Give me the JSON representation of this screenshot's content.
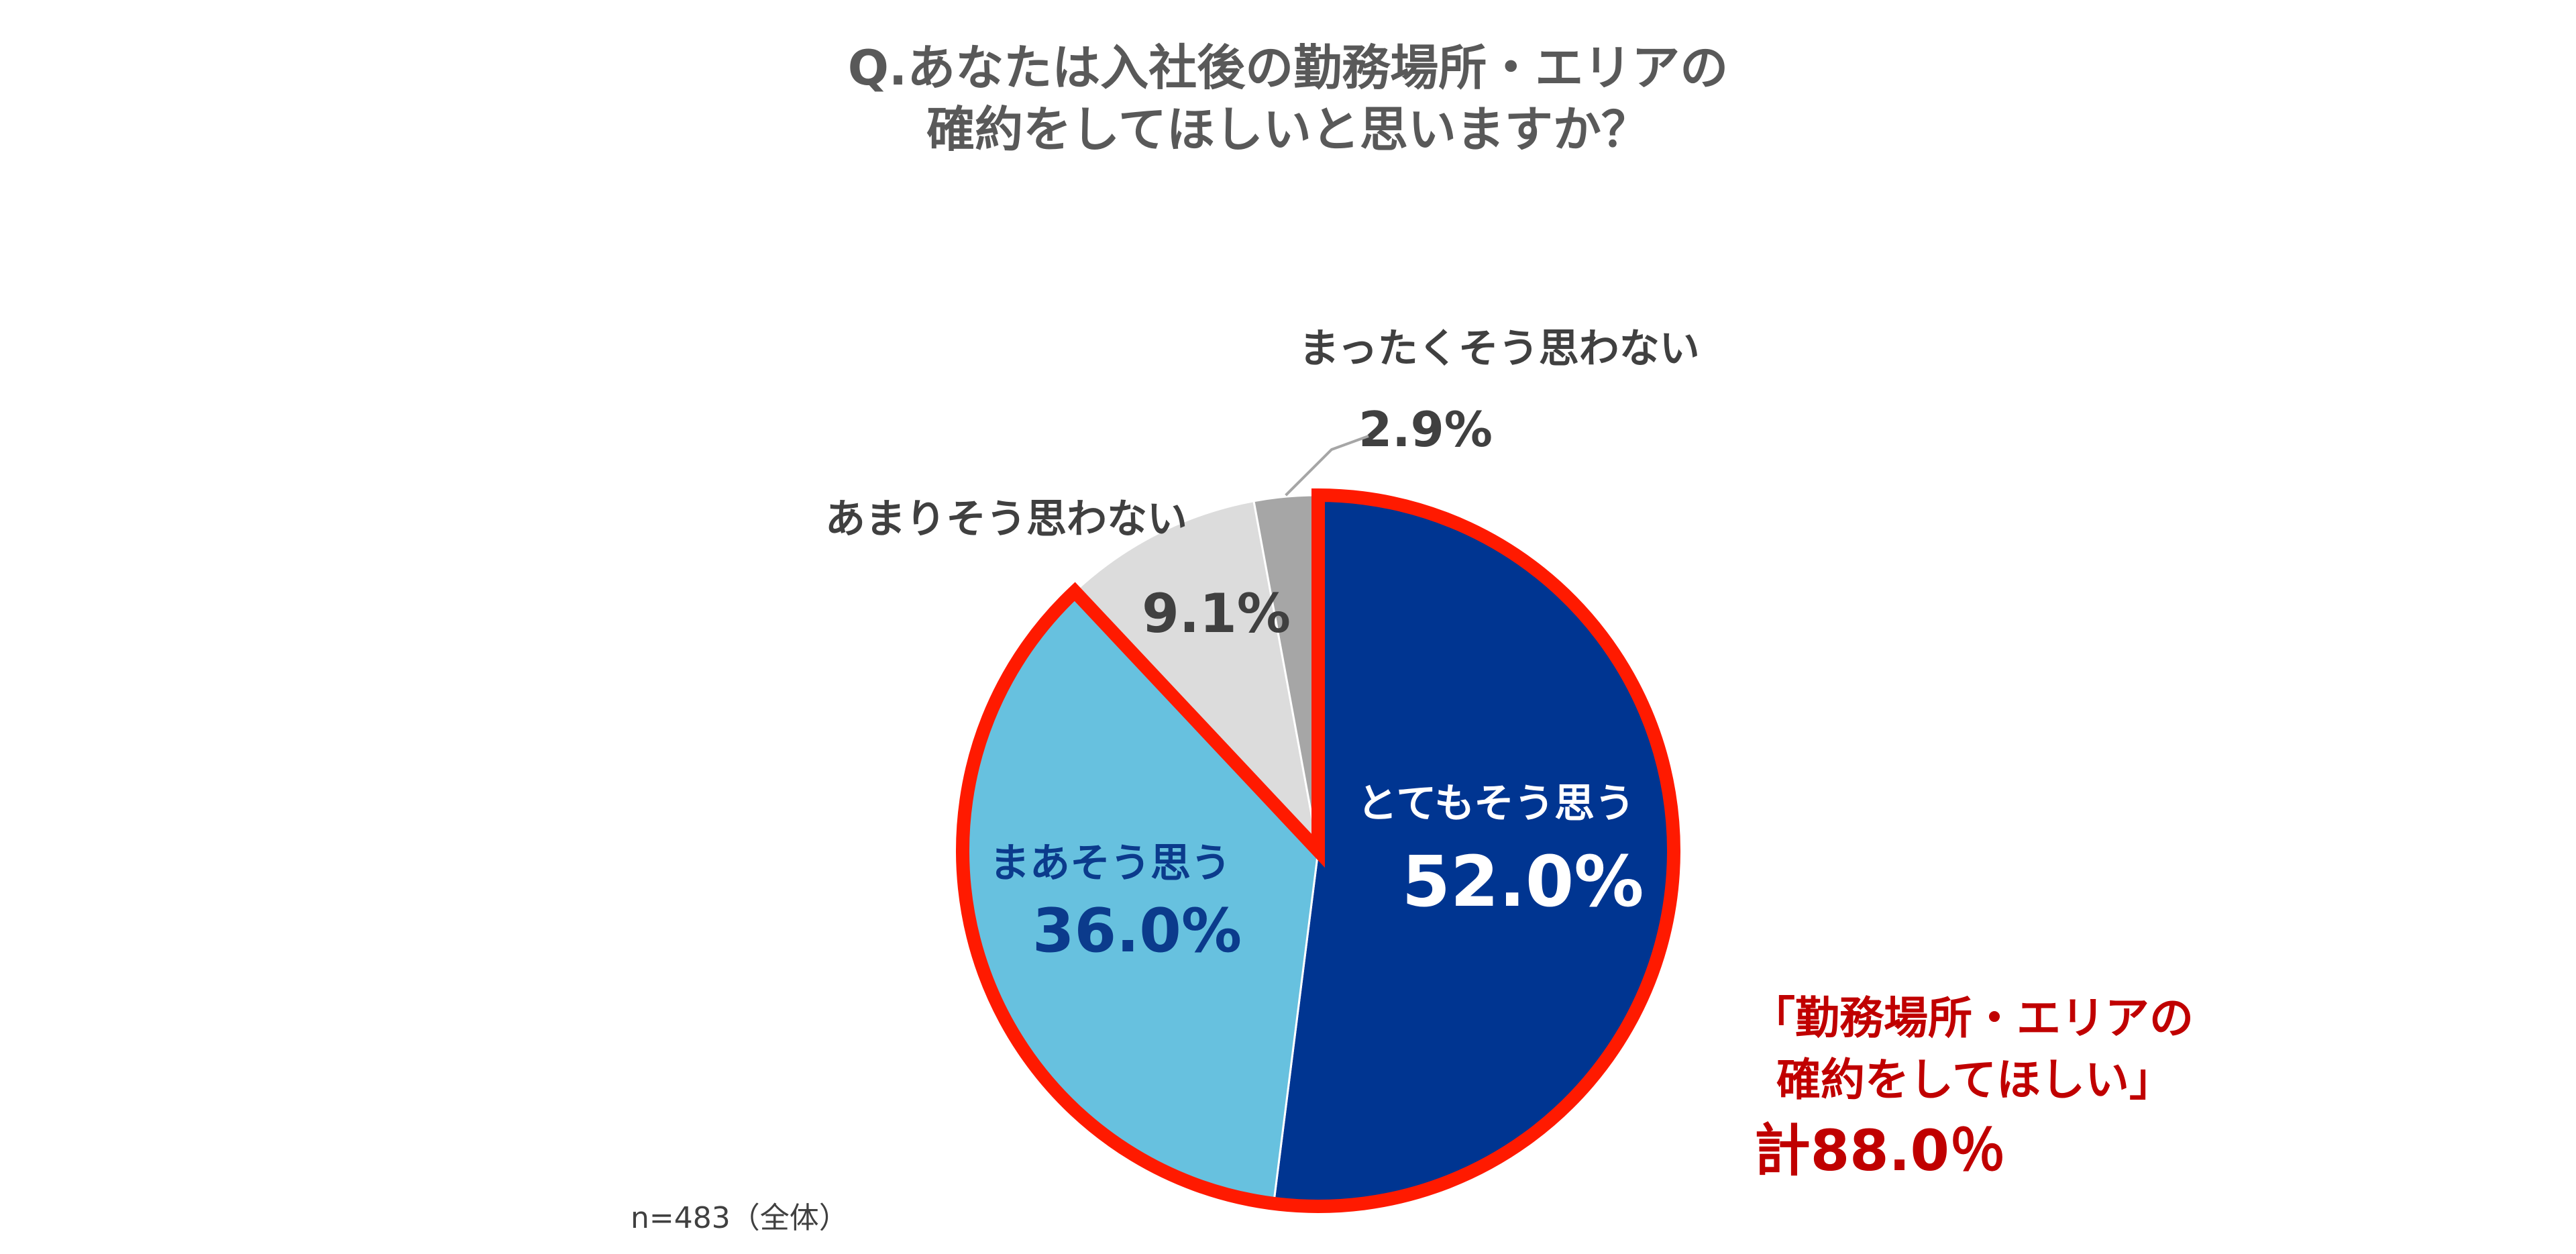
{
  "chart_data": {
    "type": "pie",
    "title": [
      "Q.あなたは入社後の勤務場所・エリアの",
      "確約をしてほしいと思いますか？"
    ],
    "categories": [
      "とてもそう思う",
      "まあそう思う",
      "あまりそう思わない",
      "まったくそう思わない"
    ],
    "values": [
      52.0,
      36.0,
      9.1,
      2.9
    ],
    "value_labels": [
      "52.0%",
      "36.0%",
      "9.1%",
      "2.9%"
    ],
    "colors": [
      "#003591",
      "#67C1DF",
      "#DCDCDC",
      "#A6A6A6"
    ],
    "label_colors": [
      "#ffffff",
      "#0B3B8C",
      "#404040",
      "#404040"
    ],
    "start_angle": "12 o'clock",
    "direction": "clockwise",
    "highlight": {
      "outline_color": "#FF1A00",
      "slices": [
        0,
        1
      ],
      "annotation": [
        "「勤務場所・エリアの",
        "確約をしてほしい」",
        "計88.0％"
      ],
      "annotation_color": "#C00000"
    },
    "note": "n=483（全体）"
  }
}
